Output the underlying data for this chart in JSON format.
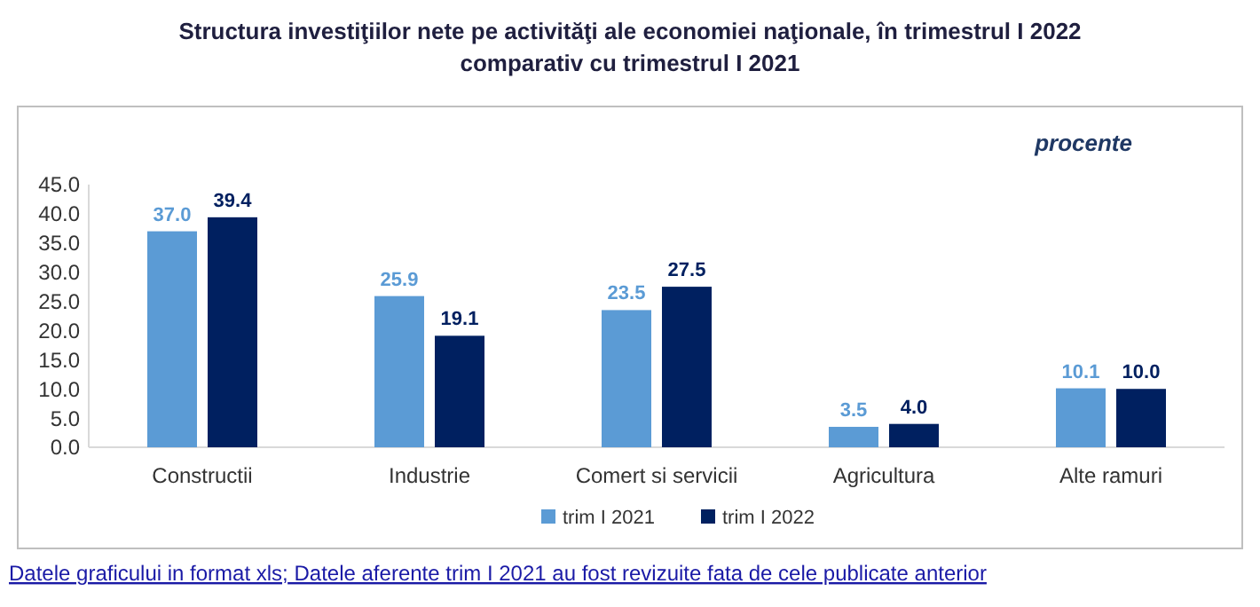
{
  "chart_data": {
    "type": "bar",
    "title": "Structura investiţiilor nete pe activităţi ale economiei naţionale, în trimestrul I 2022\ncomparativ cu trimestrul I 2021",
    "ylabel": "procente",
    "categories": [
      "Constructii",
      "Industrie",
      "Comert si servicii",
      "Agricultura",
      "Alte ramuri"
    ],
    "series": [
      {
        "name": "trim I 2021",
        "color": "#5b9bd5",
        "values": [
          37.0,
          25.9,
          23.5,
          3.5,
          10.1
        ],
        "value_labels": [
          "37.0",
          "25.9",
          "23.5",
          "3.5",
          "10.1"
        ]
      },
      {
        "name": "trim I 2022",
        "color": "#002060",
        "values": [
          39.4,
          19.1,
          27.5,
          4.0,
          10.0
        ],
        "value_labels": [
          "39.4",
          "19.1",
          "27.5",
          "4.0",
          "10.0"
        ]
      }
    ],
    "ylim": [
      0,
      45
    ],
    "yticks": [
      {
        "value": 0,
        "label": "0.0"
      },
      {
        "value": 5,
        "label": "5.0"
      },
      {
        "value": 10,
        "label": "10.0"
      },
      {
        "value": 15,
        "label": "15.0"
      },
      {
        "value": 20,
        "label": "20.0"
      },
      {
        "value": 25,
        "label": "25.0"
      },
      {
        "value": 30,
        "label": "30.0"
      },
      {
        "value": 35,
        "label": "35.0"
      },
      {
        "value": 40,
        "label": "40.0"
      },
      {
        "value": 45,
        "label": "45.0"
      }
    ],
    "grid": false,
    "legend": "bottom",
    "annotations": [
      "Datele graficului in format xls;",
      "Datele aferente trim I 2021 au fost revizuite fata de cele publicate anterior"
    ]
  }
}
